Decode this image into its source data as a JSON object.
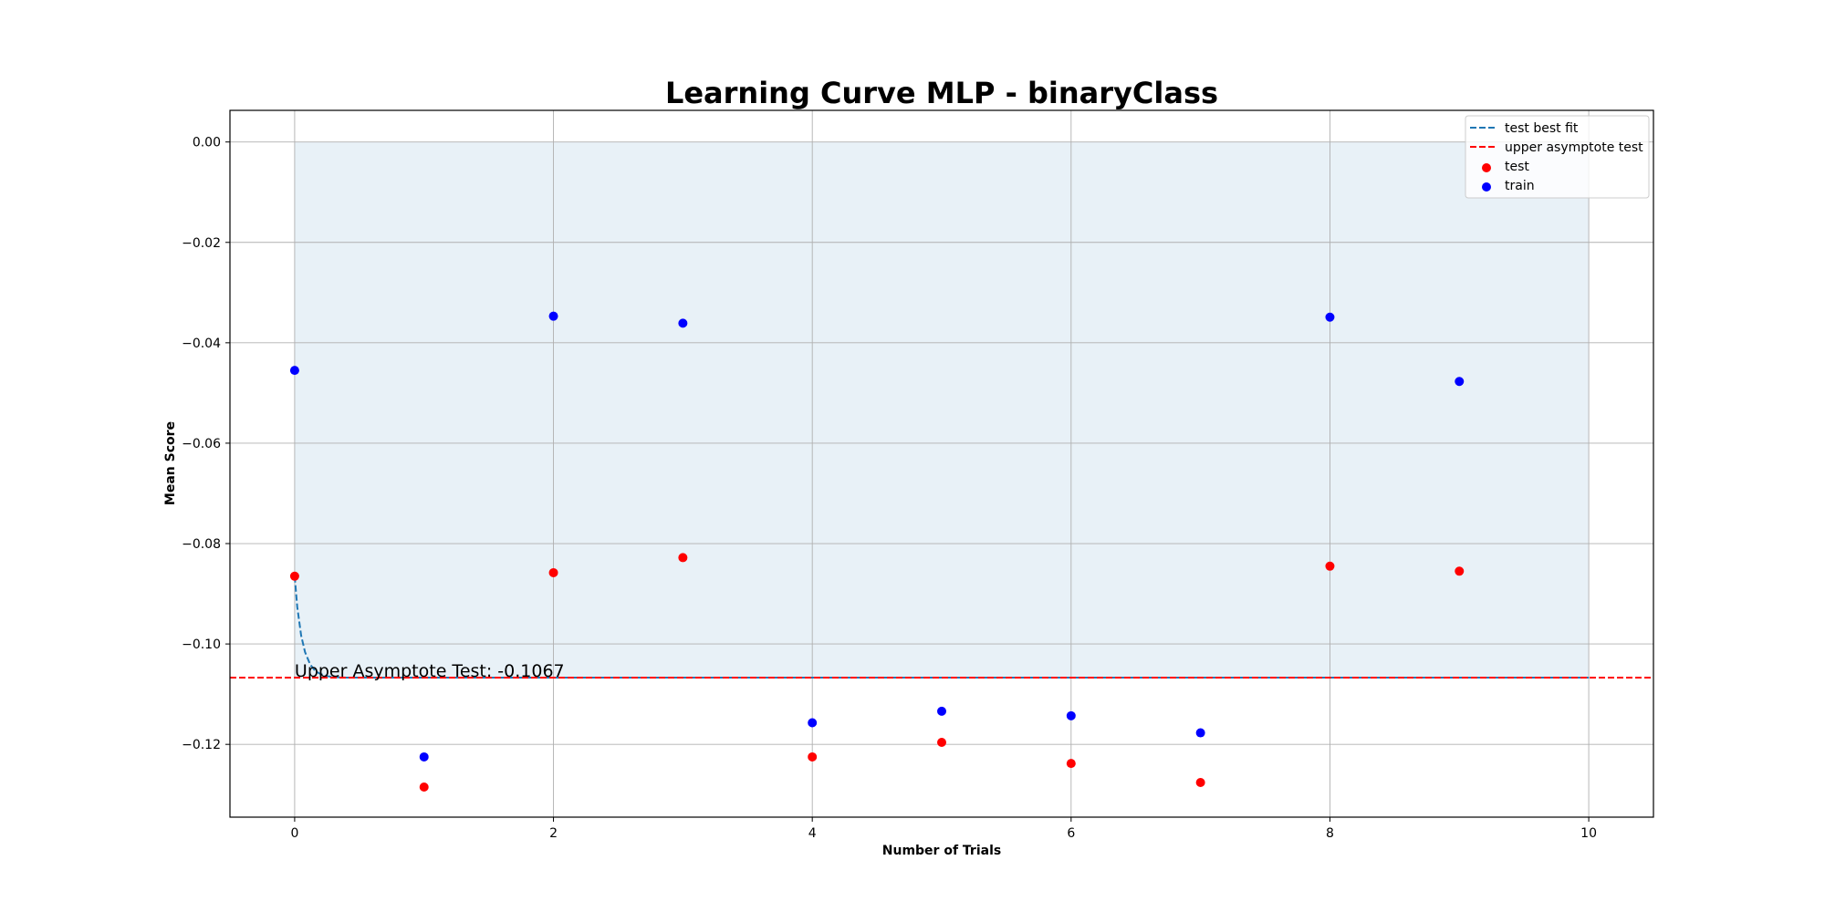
{
  "chart_data": {
    "type": "scatter",
    "title": "Learning Curve MLP - binaryClass",
    "xlabel": "Number of Trials",
    "ylabel": "Mean Score",
    "xlim": [
      -0.5,
      10.5
    ],
    "ylim": [
      -0.1345,
      0.0063
    ],
    "xticks": [
      0,
      2,
      4,
      6,
      8,
      10
    ],
    "yticks": [
      0.0,
      -0.02,
      -0.04,
      -0.06,
      -0.08,
      -0.1,
      -0.12
    ],
    "ytick_labels": [
      "0.00",
      "−0.02",
      "−0.04",
      "−0.06",
      "−0.08",
      "−0.10",
      "−0.12"
    ],
    "xtick_labels": [
      "0",
      "2",
      "4",
      "6",
      "8",
      "10"
    ],
    "grid": true,
    "legend_position": "top-right",
    "series": [
      {
        "name": "test",
        "kind": "scatter",
        "color": "#ff0000",
        "x": [
          0,
          1,
          2,
          3,
          4,
          5,
          6,
          7,
          8,
          9
        ],
        "y": [
          -0.0865,
          -0.1285,
          -0.0858,
          -0.0828,
          -0.1225,
          -0.1196,
          -0.1238,
          -0.1276,
          -0.0845,
          -0.0855
        ]
      },
      {
        "name": "train",
        "kind": "scatter",
        "color": "#0000ff",
        "x": [
          0,
          1,
          2,
          3,
          4,
          5,
          6,
          7,
          8,
          9
        ],
        "y": [
          -0.0455,
          -0.1225,
          -0.0347,
          -0.0361,
          -0.1157,
          -0.1134,
          -0.1143,
          -0.1177,
          -0.0349,
          -0.0477
        ]
      },
      {
        "name": "test best fit",
        "kind": "line",
        "style": "dashed",
        "color": "#1f77b4",
        "x": [
          0,
          0.02,
          0.05,
          0.08,
          0.12,
          0.16,
          0.2,
          0.25,
          0.3,
          0.4,
          0.6,
          1,
          2,
          4,
          6,
          8,
          10
        ],
        "y": [
          -0.0865,
          -0.0926,
          -0.0983,
          -0.1016,
          -0.1041,
          -0.1054,
          -0.106,
          -0.1064,
          -0.1066,
          -0.1067,
          -0.1067,
          -0.1067,
          -0.1067,
          -0.1067,
          -0.1067,
          -0.1067,
          -0.1067
        ]
      },
      {
        "name": "upper asymptote test",
        "kind": "hline",
        "style": "dashed",
        "color": "#ff0000",
        "y": -0.1067
      }
    ],
    "shaded_region": {
      "x": [
        0,
        10
      ],
      "y": [
        -0.1067,
        0.0
      ],
      "color": "#1f77b4",
      "alpha": 0.1
    },
    "annotations": [
      {
        "text": "Upper Asymptote Test: -0.1067",
        "x": 0,
        "y": -0.1067
      }
    ],
    "legend": [
      "test best fit",
      "upper asymptote test",
      "test",
      "train"
    ]
  }
}
